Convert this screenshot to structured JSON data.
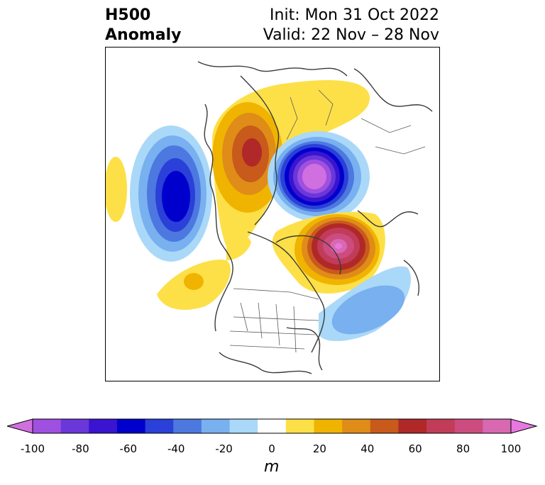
{
  "header": {
    "left_line1": "H500",
    "left_line2": "Anomaly",
    "right_line1": "Init: Mon 31 Oct 2022",
    "right_line2": "Valid: 22 Nov – 28 Nov"
  },
  "map": {
    "projection": "north-polar-stereographic",
    "field": "500 hPa geopotential height anomaly",
    "features": [
      {
        "type": "ridge",
        "region": "northwestern Canada / Alaska",
        "peak_anomaly_m": 60
      },
      {
        "type": "trough",
        "region": "Arctic Ocean / Siberian Arctic",
        "peak_anomaly_m": -100
      },
      {
        "type": "trough",
        "region": "North Pacific",
        "peak_anomaly_m": -60
      },
      {
        "type": "ridge",
        "region": "Greenland / North Atlantic",
        "peak_anomaly_m": 90
      },
      {
        "type": "trough",
        "region": "western North Atlantic",
        "peak_anomaly_m": -40
      },
      {
        "type": "ridge",
        "region": "central North Pacific",
        "peak_anomaly_m": 30
      },
      {
        "type": "ridge",
        "region": "eastern Siberia",
        "peak_anomaly_m": 10
      }
    ]
  },
  "colorbar": {
    "unit": "m",
    "ticks": [
      "-100",
      "-80",
      "-60",
      "-40",
      "-20",
      "0",
      "20",
      "40",
      "60",
      "80",
      "100"
    ],
    "bins": [
      {
        "range": "-100 to -90",
        "color": "#d070e0"
      },
      {
        "range": "-90 to -80",
        "color": "#a050e0"
      },
      {
        "range": "-80 to -70",
        "color": "#6a38d8"
      },
      {
        "range": "-70 to -60",
        "color": "#3a14d0"
      },
      {
        "range": "-60 to -50",
        "color": "#0000cc"
      },
      {
        "range": "-50 to -40",
        "color": "#2a40d8"
      },
      {
        "range": "-40 to -30",
        "color": "#4d78e0"
      },
      {
        "range": "-30 to -20",
        "color": "#78b0f0"
      },
      {
        "range": "-20 to -10",
        "color": "#aad8f8"
      },
      {
        "range": "-10 to 10",
        "color": "#ffffff"
      },
      {
        "range": "10 to 20",
        "color": "#fde048"
      },
      {
        "range": "20 to 30",
        "color": "#f0b400"
      },
      {
        "range": "30 to 40",
        "color": "#e08c18"
      },
      {
        "range": "40 to 50",
        "color": "#c85a1c"
      },
      {
        "range": "50 to 60",
        "color": "#b02828"
      },
      {
        "range": "60 to 70",
        "color": "#c03c58"
      },
      {
        "range": "70 to 80",
        "color": "#cc4c80"
      },
      {
        "range": "80 to 90",
        "color": "#d868b0"
      },
      {
        "range": "90 to 100",
        "color": "#e878e0"
      }
    ]
  }
}
